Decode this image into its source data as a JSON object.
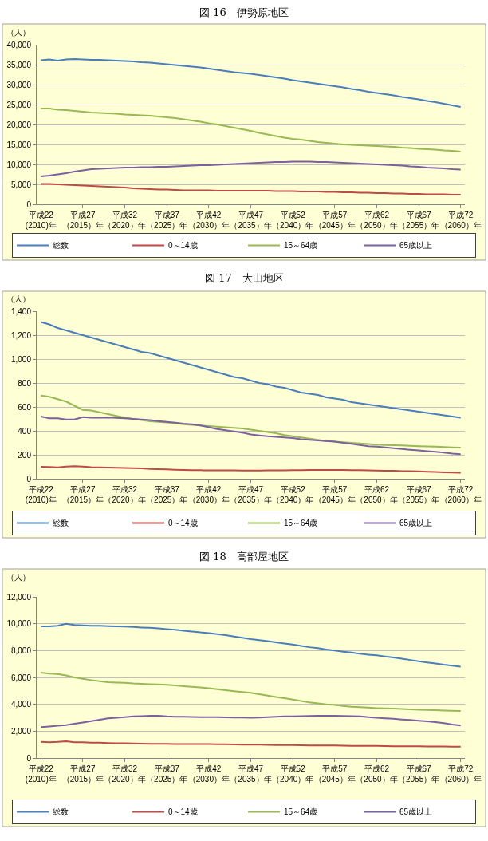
{
  "chart_data": [
    {
      "type": "line",
      "title": "図 16　伊勢原地区",
      "ylabel": "（人）",
      "categories": [
        "平成22\n(2010)年",
        null,
        null,
        null,
        null,
        "平成27\n（2015）年",
        null,
        null,
        null,
        null,
        "平成32\n（2020）年",
        null,
        null,
        null,
        null,
        "平成37\n（2025）年",
        null,
        null,
        null,
        null,
        "平成42\n（2030）年",
        null,
        null,
        null,
        null,
        "平成47\n（2035）年",
        null,
        null,
        null,
        null,
        "平成52\n（2040）年",
        null,
        null,
        null,
        null,
        "平成57\n（2045）年",
        null,
        null,
        null,
        null,
        "平成62\n（2050）年",
        null,
        null,
        null,
        null,
        "平成67\n（2055）年",
        null,
        null,
        null,
        null,
        "平成72\n（2060）年"
      ],
      "series": [
        {
          "name": "総数",
          "color": "#4a7ebb",
          "values": [
            36100,
            36300,
            36000,
            36300,
            36400,
            36300,
            36200,
            36200,
            36100,
            36000,
            35900,
            35800,
            35600,
            35500,
            35300,
            35100,
            34900,
            34700,
            34500,
            34300,
            34000,
            33700,
            33400,
            33100,
            32900,
            32700,
            32400,
            32100,
            31800,
            31500,
            31100,
            30800,
            30500,
            30200,
            29900,
            29600,
            29300,
            28900,
            28600,
            28200,
            27900,
            27600,
            27300,
            26900,
            26600,
            26300,
            25900,
            25600,
            25200,
            24800,
            24400
          ]
        },
        {
          "name": "0～14歳",
          "color": "#be4b48",
          "values": [
            5100,
            5100,
            5000,
            4900,
            4800,
            4700,
            4600,
            4500,
            4400,
            4300,
            4200,
            4000,
            3900,
            3800,
            3700,
            3700,
            3600,
            3500,
            3500,
            3500,
            3500,
            3400,
            3400,
            3400,
            3400,
            3400,
            3400,
            3400,
            3300,
            3300,
            3300,
            3200,
            3200,
            3200,
            3100,
            3100,
            3000,
            3000,
            2900,
            2900,
            2800,
            2800,
            2700,
            2700,
            2600,
            2600,
            2500,
            2500,
            2500,
            2400,
            2400
          ]
        },
        {
          "name": "15～64歳",
          "color": "#98b954",
          "values": [
            24000,
            24000,
            23700,
            23600,
            23400,
            23200,
            23000,
            22900,
            22800,
            22700,
            22500,
            22400,
            22300,
            22200,
            22000,
            21800,
            21600,
            21300,
            21000,
            20700,
            20300,
            20000,
            19600,
            19200,
            18800,
            18400,
            17900,
            17500,
            17100,
            16700,
            16400,
            16200,
            15900,
            15600,
            15400,
            15200,
            15000,
            14900,
            14800,
            14700,
            14600,
            14500,
            14400,
            14200,
            14100,
            13900,
            13800,
            13700,
            13500,
            13400,
            13200
          ]
        },
        {
          "name": "65歳以上",
          "color": "#7d60a0",
          "values": [
            7000,
            7200,
            7500,
            7800,
            8200,
            8500,
            8800,
            8900,
            9000,
            9100,
            9200,
            9200,
            9300,
            9300,
            9400,
            9400,
            9500,
            9600,
            9700,
            9800,
            9800,
            9900,
            10000,
            10100,
            10200,
            10300,
            10400,
            10500,
            10600,
            10600,
            10700,
            10700,
            10700,
            10600,
            10600,
            10500,
            10400,
            10300,
            10200,
            10100,
            10000,
            9900,
            9800,
            9700,
            9500,
            9400,
            9200,
            9100,
            9000,
            8800,
            8700
          ]
        }
      ],
      "ylim": [
        0,
        40000
      ],
      "yticks": [
        {
          "value": 0,
          "label": "0"
        },
        {
          "value": 5000,
          "label": "5,000"
        },
        {
          "value": 10000,
          "label": "10,000"
        },
        {
          "value": 15000,
          "label": "15,000"
        },
        {
          "value": 20000,
          "label": "20,000"
        },
        {
          "value": 25000,
          "label": "25,000"
        },
        {
          "value": 30000,
          "label": "30,000"
        },
        {
          "value": 35000,
          "label": "35,000"
        },
        {
          "value": 40000,
          "label": "40,000"
        }
      ],
      "grid": "y",
      "legend": "bottom",
      "marker": "none",
      "line_style": "solid"
    },
    {
      "type": "line",
      "title": "図 17　大山地区",
      "ylabel": "（人）",
      "categories": [
        "平成22\n(2010)年",
        null,
        null,
        null,
        null,
        "平成27\n（2015）年",
        null,
        null,
        null,
        null,
        "平成32\n（2020）年",
        null,
        null,
        null,
        null,
        "平成37\n（2025）年",
        null,
        null,
        null,
        null,
        "平成42\n（2030）年",
        null,
        null,
        null,
        null,
        "平成47\n（2035）年",
        null,
        null,
        null,
        null,
        "平成52\n（2040）年",
        null,
        null,
        null,
        null,
        "平成57\n（2045）年",
        null,
        null,
        null,
        null,
        "平成62\n（2050）年",
        null,
        null,
        null,
        null,
        "平成67\n（2055）年",
        null,
        null,
        null,
        null,
        "平成72\n（2060）年"
      ],
      "series": [
        {
          "name": "総数",
          "color": "#4a7ebb",
          "values": [
            1310,
            1290,
            1260,
            1240,
            1220,
            1200,
            1180,
            1160,
            1140,
            1120,
            1100,
            1080,
            1060,
            1050,
            1030,
            1010,
            990,
            970,
            950,
            930,
            910,
            890,
            870,
            850,
            840,
            820,
            800,
            790,
            770,
            760,
            740,
            720,
            710,
            700,
            680,
            670,
            660,
            640,
            630,
            620,
            610,
            600,
            590,
            580,
            570,
            560,
            550,
            540,
            530,
            520,
            510
          ]
        },
        {
          "name": "0～14歳",
          "color": "#be4b48",
          "values": [
            100,
            98,
            95,
            102,
            105,
            102,
            96,
            95,
            93,
            91,
            90,
            88,
            86,
            82,
            80,
            78,
            75,
            73,
            72,
            71,
            70,
            70,
            70,
            70,
            69,
            68,
            69,
            70,
            70,
            70,
            72,
            72,
            73,
            73,
            74,
            74,
            73,
            72,
            72,
            70,
            68,
            67,
            66,
            64,
            63,
            61,
            59,
            57,
            54,
            52,
            50
          ]
        },
        {
          "name": "15～64歳",
          "color": "#98b954",
          "values": [
            695,
            685,
            665,
            645,
            610,
            575,
            570,
            555,
            540,
            525,
            510,
            500,
            490,
            480,
            475,
            470,
            465,
            455,
            450,
            445,
            440,
            435,
            430,
            425,
            420,
            410,
            400,
            390,
            380,
            365,
            355,
            345,
            335,
            325,
            315,
            310,
            305,
            300,
            295,
            290,
            285,
            282,
            280,
            278,
            275,
            272,
            270,
            268,
            265,
            262,
            260
          ]
        },
        {
          "name": "65歳以上",
          "color": "#7d60a0",
          "values": [
            520,
            505,
            505,
            495,
            495,
            515,
            510,
            510,
            512,
            508,
            505,
            500,
            495,
            490,
            482,
            475,
            468,
            460,
            455,
            445,
            430,
            415,
            405,
            395,
            385,
            370,
            362,
            355,
            350,
            345,
            340,
            330,
            325,
            320,
            315,
            310,
            300,
            292,
            282,
            272,
            268,
            262,
            255,
            248,
            242,
            236,
            230,
            225,
            218,
            210,
            205
          ]
        }
      ],
      "ylim": [
        0,
        1400
      ],
      "yticks": [
        {
          "value": 0,
          "label": "0"
        },
        {
          "value": 200,
          "label": "200"
        },
        {
          "value": 400,
          "label": "400"
        },
        {
          "value": 600,
          "label": "600"
        },
        {
          "value": 800,
          "label": "800"
        },
        {
          "value": 1000,
          "label": "1,000"
        },
        {
          "value": 1200,
          "label": "1,200"
        },
        {
          "value": 1400,
          "label": "1,400"
        }
      ],
      "grid": "y",
      "legend": "bottom",
      "marker": "none",
      "line_style": "solid"
    },
    {
      "type": "line",
      "title": "図 18　高部屋地区",
      "ylabel": "（人）",
      "categories": [
        "平成22\n(2010)年",
        null,
        null,
        null,
        null,
        "平成27\n（2015）年",
        null,
        null,
        null,
        null,
        "平成32\n（2020）年",
        null,
        null,
        null,
        null,
        "平成37\n（2025）年",
        null,
        null,
        null,
        null,
        "平成42\n（2030）年",
        null,
        null,
        null,
        null,
        "平成47\n（2035）年",
        null,
        null,
        null,
        null,
        "平成52\n（2040）年",
        null,
        null,
        null,
        null,
        "平成57\n（2045）年",
        null,
        null,
        null,
        null,
        "平成62\n（2050）年",
        null,
        null,
        null,
        null,
        "平成67\n（2055）年",
        null,
        null,
        null,
        null,
        "平成72\n（2060）年"
      ],
      "series": [
        {
          "name": "総数",
          "color": "#4a7ebb",
          "values": [
            9800,
            9800,
            9850,
            10000,
            9900,
            9880,
            9850,
            9850,
            9820,
            9800,
            9780,
            9750,
            9720,
            9700,
            9650,
            9600,
            9550,
            9480,
            9420,
            9350,
            9300,
            9220,
            9150,
            9050,
            8950,
            8850,
            8780,
            8700,
            8620,
            8530,
            8450,
            8350,
            8250,
            8180,
            8080,
            8000,
            7920,
            7850,
            7760,
            7700,
            7650,
            7560,
            7480,
            7400,
            7300,
            7200,
            7120,
            7040,
            6950,
            6880,
            6800
          ]
        },
        {
          "name": "0～14歳",
          "color": "#be4b48",
          "values": [
            1200,
            1180,
            1200,
            1250,
            1180,
            1170,
            1150,
            1140,
            1120,
            1100,
            1100,
            1090,
            1070,
            1050,
            1050,
            1050,
            1040,
            1040,
            1040,
            1040,
            1040,
            1030,
            1020,
            1010,
            1000,
            1000,
            990,
            980,
            970,
            960,
            960,
            950,
            940,
            940,
            930,
            930,
            920,
            910,
            900,
            900,
            900,
            890,
            880,
            880,
            880,
            870,
            860,
            860,
            860,
            850,
            840
          ]
        },
        {
          "name": "15～64歳",
          "color": "#98b954",
          "values": [
            6350,
            6280,
            6250,
            6150,
            6000,
            5900,
            5800,
            5720,
            5650,
            5620,
            5600,
            5550,
            5520,
            5500,
            5480,
            5450,
            5400,
            5350,
            5300,
            5250,
            5200,
            5120,
            5050,
            4980,
            4920,
            4850,
            4750,
            4650,
            4550,
            4450,
            4350,
            4250,
            4150,
            4070,
            4000,
            3950,
            3870,
            3820,
            3780,
            3750,
            3720,
            3700,
            3680,
            3650,
            3630,
            3600,
            3580,
            3560,
            3540,
            3520,
            3500
          ]
        },
        {
          "name": "65歳以上",
          "color": "#7d60a0",
          "values": [
            2300,
            2350,
            2400,
            2450,
            2550,
            2650,
            2750,
            2850,
            2950,
            3000,
            3050,
            3100,
            3120,
            3150,
            3150,
            3100,
            3080,
            3070,
            3060,
            3050,
            3050,
            3040,
            3030,
            3020,
            3010,
            3000,
            3020,
            3050,
            3080,
            3100,
            3100,
            3120,
            3130,
            3150,
            3150,
            3150,
            3140,
            3120,
            3100,
            3050,
            3000,
            2960,
            2920,
            2870,
            2830,
            2780,
            2730,
            2680,
            2600,
            2500,
            2420
          ]
        }
      ],
      "ylim": [
        0,
        12000
      ],
      "yticks": [
        {
          "value": 0,
          "label": "0"
        },
        {
          "value": 2000,
          "label": "2,000"
        },
        {
          "value": 4000,
          "label": "4,000"
        },
        {
          "value": 6000,
          "label": "6,000"
        },
        {
          "value": 8000,
          "label": "8,000"
        },
        {
          "value": 10000,
          "label": "10,000"
        },
        {
          "value": 12000,
          "label": "12,000"
        }
      ],
      "grid": "y",
      "legend": "bottom",
      "marker": "none",
      "line_style": "solid"
    }
  ]
}
